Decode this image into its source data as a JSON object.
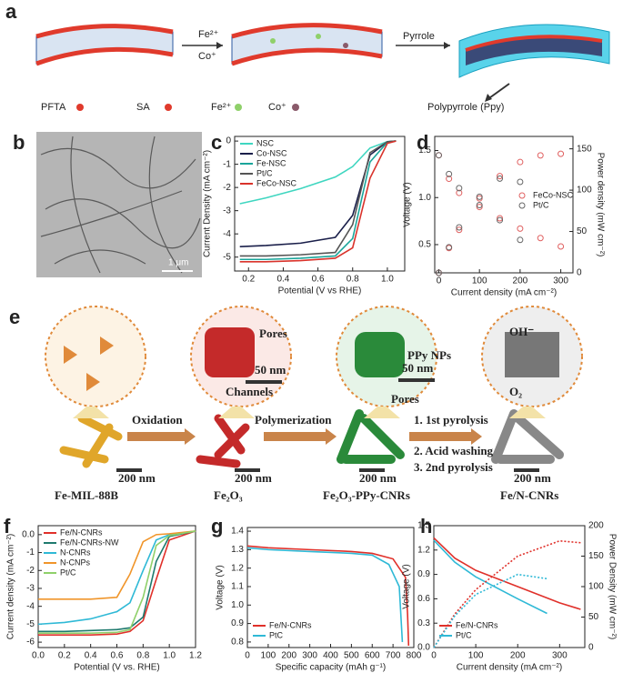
{
  "panel_labels": [
    "a",
    "b",
    "c",
    "d",
    "e",
    "f",
    "g",
    "h"
  ],
  "scheme_a": {
    "reagents": [
      "Fe²⁺",
      "Co⁺"
    ],
    "step": "Pyrrole",
    "product": "Polypyrrole (Ppy)",
    "legend": [
      "PFTA",
      "SA",
      "Fe²⁺",
      "Co⁺"
    ]
  },
  "tem_b": {
    "scale_bar": "1 μm"
  },
  "scheme_e": {
    "materials": [
      "Fe-MIL-88B",
      "Fe₂O₃",
      "Fe₂O₃-PPy-CNRs",
      "Fe/N-CNRs"
    ],
    "steps": [
      "Oxidation",
      "Polymerization"
    ],
    "final_steps": [
      "1. 1st pyrolysis",
      "2. Acid washing",
      "3. 2nd pyrolysis"
    ],
    "scale_bars": [
      "50 nm",
      "50 nm",
      "200 nm",
      "200 nm",
      "200 nm",
      "200 nm"
    ],
    "insets": [
      "Pores",
      "Channels",
      "PPy NPs",
      "Pores",
      "OH⁻",
      "O₂"
    ]
  },
  "chart_data": [
    {
      "type": "line",
      "xlabel": "Potential (V vs RHE)",
      "ylabel": "Current Density (mA cm⁻²)",
      "x": [
        0.15,
        0.3,
        0.5,
        0.7,
        0.8,
        0.9,
        1.0,
        1.05
      ],
      "xlim": [
        0.12,
        1.1
      ],
      "xticks": [
        0.2,
        0.4,
        0.6,
        0.8,
        {
          "value": 1.0,
          "label": "1.0"
        }
      ],
      "ylim": [
        -5.6,
        0.2
      ],
      "yticks": [
        0,
        -1,
        -2,
        -3,
        -4,
        -5
      ],
      "legend": "top-left",
      "series": [
        {
          "name": "NSC",
          "color": "#3fd6c0",
          "values": [
            -2.7,
            -2.45,
            -2.05,
            -1.55,
            -1.1,
            -0.3,
            -0.02,
            0
          ]
        },
        {
          "name": "Co-NSC",
          "color": "#1a1f4a",
          "values": [
            -4.55,
            -4.5,
            -4.4,
            -4.15,
            -3.2,
            -0.6,
            -0.03,
            0
          ]
        },
        {
          "name": "Fe-NSC",
          "color": "#1aa59a",
          "values": [
            -5.1,
            -5.1,
            -5.05,
            -4.95,
            -4.2,
            -0.9,
            -0.05,
            0
          ]
        },
        {
          "name": "Pt/C",
          "color": "#555555",
          "values": [
            -4.95,
            -4.95,
            -4.9,
            -4.8,
            -3.6,
            -0.5,
            -0.03,
            0
          ]
        },
        {
          "name": "FeCo-NSC",
          "color": "#d9332b",
          "values": [
            -5.2,
            -5.2,
            -5.15,
            -5.05,
            -4.6,
            -1.6,
            -0.1,
            0
          ]
        }
      ]
    },
    {
      "type": "line",
      "marker": "circle",
      "xlabel": "Current density (mA cm⁻²)",
      "ylabel": "Voltage (V)",
      "y2label": "Power density (mW cm⁻²)",
      "xlim": [
        -10,
        330
      ],
      "xticks": [
        0,
        100,
        200,
        300
      ],
      "ylim": [
        0.2,
        1.65
      ],
      "yticks": [
        0.5,
        {
          "value": 1.0,
          "label": "1.0"
        },
        1.5
      ],
      "y2lim": [
        0,
        165
      ],
      "y2ticks": [
        0,
        50,
        100,
        150
      ],
      "legend": "right",
      "series": [
        {
          "name": "FeCo-NSC",
          "color": "#e06060",
          "x": [
            0,
            25,
            50,
            100,
            150,
            200,
            250,
            300
          ],
          "values": [
            1.45,
            1.2,
            1.05,
            0.9,
            0.78,
            0.67,
            0.57,
            0.48
          ]
        },
        {
          "name": "Pt/C",
          "color": "#666666",
          "x": [
            0,
            25,
            50,
            100,
            150,
            200
          ],
          "values": [
            1.45,
            1.25,
            1.1,
            0.92,
            0.76,
            0.55
          ]
        },
        {
          "name": "FeCo-NSC",
          "color": "#e06060",
          "axis": "y2",
          "x": [
            0,
            25,
            50,
            100,
            150,
            200,
            250,
            300
          ],
          "values": [
            0,
            30,
            52,
            90,
            117,
            134,
            142,
            144
          ]
        },
        {
          "name": "Pt/C",
          "color": "#666666",
          "axis": "y2",
          "x": [
            0,
            25,
            50,
            100,
            150,
            200
          ],
          "values": [
            0,
            31,
            55,
            92,
            114,
            110
          ]
        }
      ]
    },
    {
      "type": "line",
      "xlabel": "Potential (V vs. RHE)",
      "ylabel": "Current density (mA cm⁻²)",
      "x": [
        0,
        0.2,
        0.4,
        0.6,
        0.7,
        0.8,
        0.9,
        1.0,
        1.2
      ],
      "xlim": [
        0,
        1.2
      ],
      "xticks": [
        {
          "value": 0,
          "label": "0.0"
        },
        0.2,
        0.4,
        0.6,
        0.8,
        {
          "value": 1,
          "label": "1.0"
        },
        1.2
      ],
      "ylim": [
        -6.3,
        0.5
      ],
      "yticks": [
        {
          "value": 0,
          "label": "0.0"
        },
        -1,
        -2,
        -3,
        -4,
        -5,
        -6
      ],
      "legend": "top-left",
      "series": [
        {
          "name": "Fe/N-CNRs",
          "color": "#e0302a",
          "values": [
            -5.6,
            -5.6,
            -5.6,
            -5.55,
            -5.4,
            -4.8,
            -2.5,
            -0.3,
            0.2
          ]
        },
        {
          "name": "Fe/N-CNRs-NW",
          "color": "#1f7a6e",
          "values": [
            -5.4,
            -5.4,
            -5.35,
            -5.3,
            -5.2,
            -4.6,
            -1.5,
            -0.1,
            0.2
          ]
        },
        {
          "name": "N-CNRs",
          "color": "#2fb9d6",
          "values": [
            -5.0,
            -4.9,
            -4.7,
            -4.3,
            -3.8,
            -2.0,
            -0.3,
            0,
            0.2
          ]
        },
        {
          "name": "N-CNPs",
          "color": "#f0952a",
          "values": [
            -3.6,
            -3.6,
            -3.6,
            -3.5,
            -2.2,
            -0.4,
            0,
            0.05,
            0.2
          ]
        },
        {
          "name": "Pt/C",
          "color": "#8fd06a",
          "values": [
            -5.5,
            -5.5,
            -5.5,
            -5.45,
            -5.3,
            -3.5,
            -0.6,
            -0.05,
            0.2
          ]
        }
      ]
    },
    {
      "type": "line",
      "xlabel": "Specific capacity (mAh g⁻¹)",
      "ylabel": "Voltage (V)",
      "xlim": [
        0,
        800
      ],
      "xticks": [
        0,
        100,
        200,
        300,
        400,
        500,
        600,
        700,
        800
      ],
      "ylim": [
        0.77,
        1.42
      ],
      "yticks": [
        0.8,
        0.9,
        {
          "value": 1,
          "label": "1.0"
        },
        1.1,
        1.2,
        1.3,
        1.4
      ],
      "legend": "bottom-left",
      "series": [
        {
          "name": "Fe/N-CNRs",
          "color": "#e0302a",
          "x": [
            0,
            100,
            300,
            500,
            600,
            700,
            760,
            770,
            775
          ],
          "values": [
            1.32,
            1.31,
            1.3,
            1.29,
            1.28,
            1.25,
            1.15,
            0.95,
            0.78
          ]
        },
        {
          "name": "PtC",
          "color": "#2fb9d6",
          "x": [
            0,
            100,
            300,
            500,
            600,
            680,
            730,
            740,
            745
          ],
          "values": [
            1.31,
            1.3,
            1.29,
            1.28,
            1.27,
            1.22,
            1.1,
            0.9,
            0.8
          ]
        }
      ]
    },
    {
      "type": "line",
      "xlabel": "Current density (mA cm⁻²)",
      "ylabel": "Voltage (V)",
      "y2label": "Power Density (mW cm⁻²)",
      "xlim": [
        0,
        360
      ],
      "xticks": [
        0,
        100,
        200,
        300
      ],
      "ylim": [
        0,
        1.5
      ],
      "yticks": [
        {
          "value": 0,
          "label": "0.0"
        },
        0.3,
        0.6,
        0.9,
        1.2,
        1.5
      ],
      "y2lim": [
        0,
        200
      ],
      "y2ticks": [
        0,
        50,
        100,
        150,
        200
      ],
      "legend": "bottom-left",
      "series": [
        {
          "name": "Fe/N-CNRs",
          "color": "#e0302a",
          "x": [
            0,
            50,
            100,
            200,
            300,
            350
          ],
          "values": [
            1.35,
            1.1,
            0.95,
            0.75,
            0.55,
            0.47
          ]
        },
        {
          "name": "Pt/C",
          "color": "#2fb9d6",
          "x": [
            0,
            50,
            100,
            200,
            270
          ],
          "values": [
            1.32,
            1.05,
            0.87,
            0.6,
            0.42
          ]
        },
        {
          "name": "Fe/N-CNRs",
          "color": "#e0302a",
          "axis": "y2",
          "dash": true,
          "x": [
            0,
            50,
            100,
            200,
            300,
            350
          ],
          "values": [
            0,
            55,
            95,
            150,
            175,
            172
          ]
        },
        {
          "name": "Pt/C",
          "color": "#2fb9d6",
          "axis": "y2",
          "dash": true,
          "x": [
            0,
            50,
            100,
            200,
            270
          ],
          "values": [
            0,
            52,
            87,
            120,
            113
          ]
        }
      ]
    }
  ]
}
